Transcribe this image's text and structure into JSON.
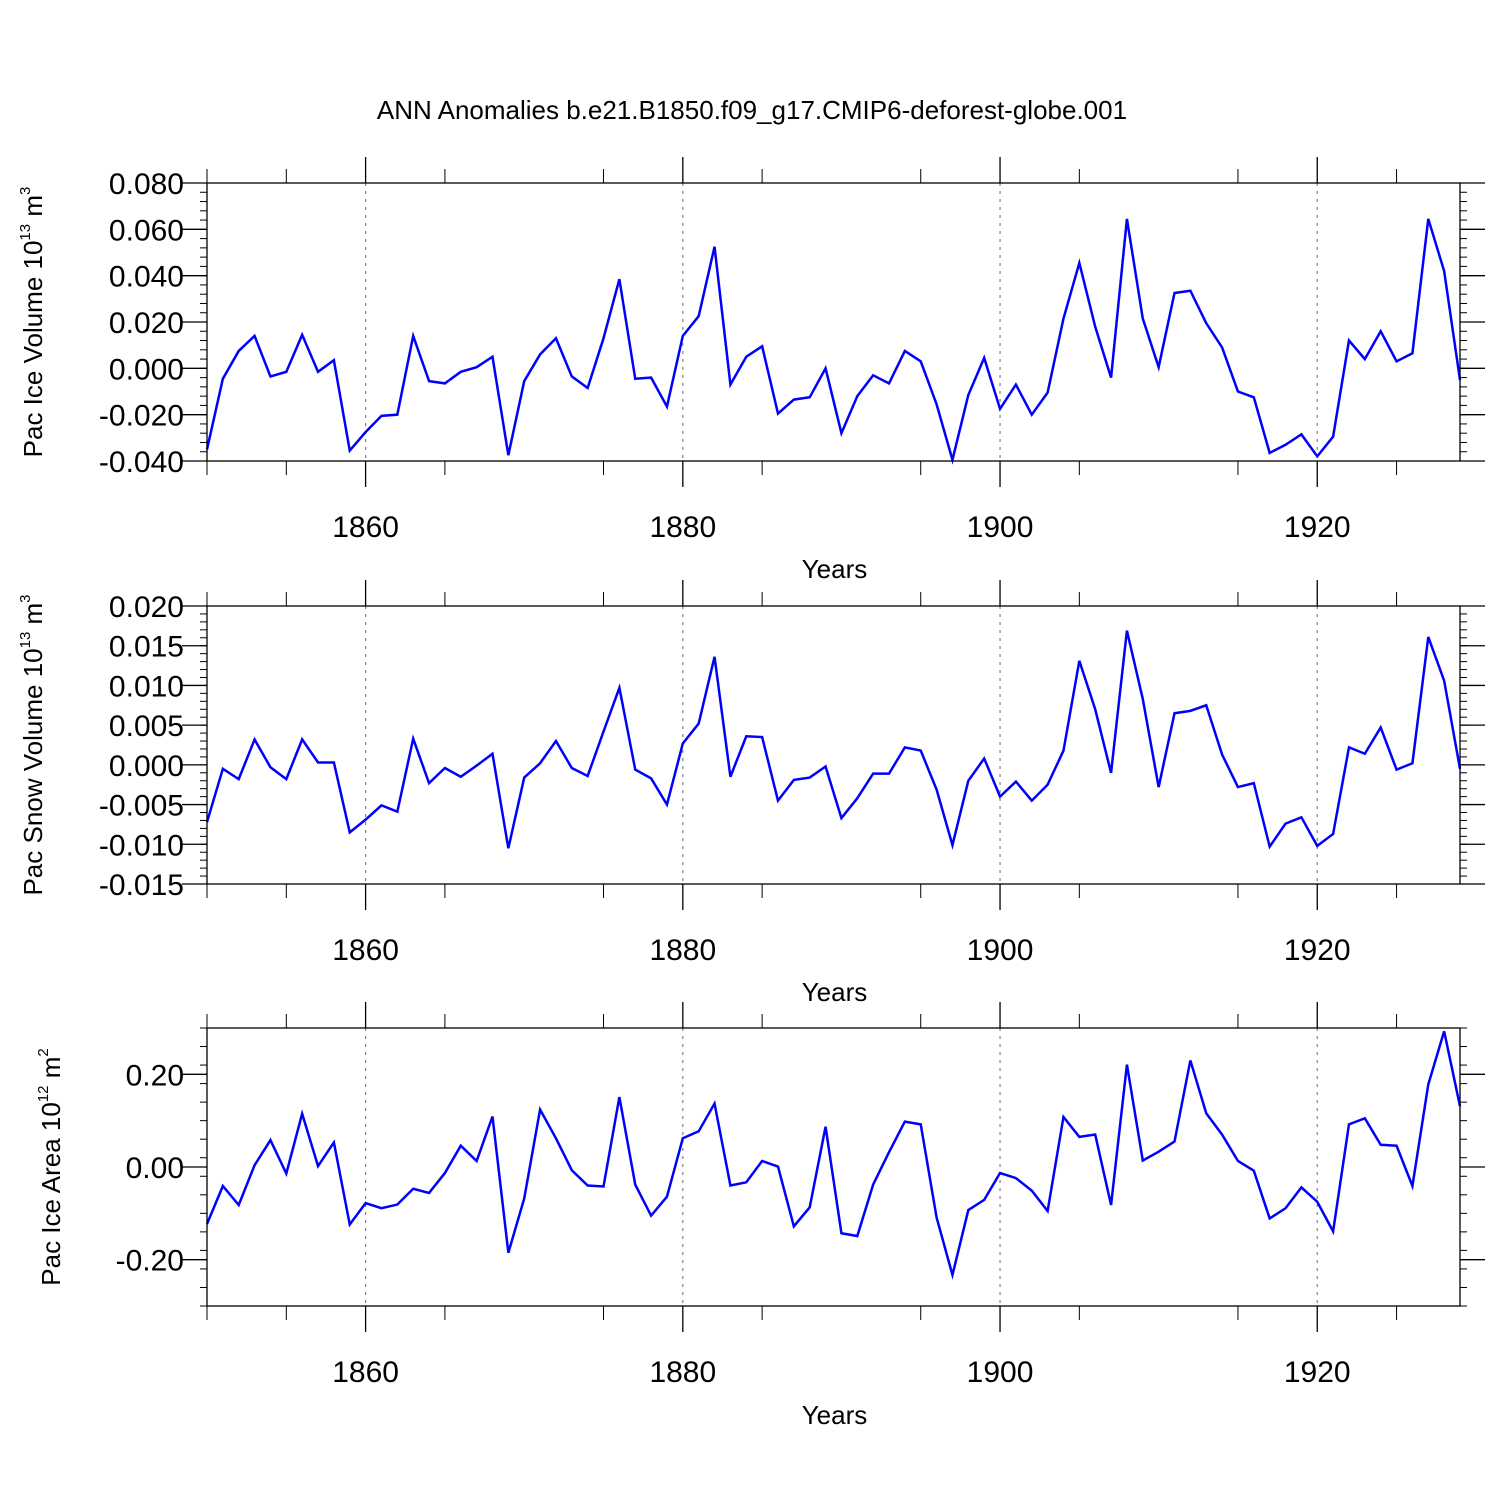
{
  "title": "ANN Anomalies b.e21.B1850.f09_g17.CMIP6-deforest-globe.001",
  "colors": {
    "line": "#0000ff",
    "axis": "#000000",
    "grid": "#808080"
  },
  "chart_data": [
    {
      "type": "line",
      "ylabel": {
        "text": "Pac Ice Volume 10",
        "sup": "13",
        "unit": " m",
        "unit_sup": "3"
      },
      "xlabel": "Years",
      "xlim": [
        1850,
        1929
      ],
      "ylim": [
        -0.04,
        0.08
      ],
      "yticks": [
        -0.04,
        -0.02,
        0.0,
        0.02,
        0.04,
        0.06,
        0.08
      ],
      "ytick_labels": [
        "-0.040",
        "-0.020",
        "0.000",
        "0.020",
        "0.040",
        "0.060",
        "0.080"
      ],
      "xticks": [
        1860,
        1880,
        1900,
        1920
      ],
      "xtick_labels": [
        "1860",
        "1880",
        "1900",
        "1920"
      ],
      "vgrid": [
        1860,
        1880,
        1900,
        1920
      ],
      "x_start": 1850,
      "values": [
        -0.035,
        -0.0045,
        0.0075,
        0.014,
        -0.0035,
        -0.0015,
        0.0145,
        -0.0015,
        0.0035,
        -0.0355,
        -0.0275,
        -0.0205,
        -0.02,
        0.014,
        -0.0055,
        -0.0065,
        -0.0015,
        0.0005,
        0.005,
        -0.0375,
        -0.0055,
        0.006,
        0.013,
        -0.0035,
        -0.0085,
        0.013,
        0.0385,
        -0.0045,
        -0.004,
        -0.0165,
        0.014,
        0.0225,
        0.0525,
        -0.007,
        0.005,
        0.0095,
        -0.0195,
        -0.0135,
        -0.0125,
        0.0,
        -0.028,
        -0.012,
        -0.003,
        -0.0065,
        0.0075,
        0.003,
        -0.0155,
        -0.0395,
        -0.0115,
        0.0045,
        -0.0175,
        -0.007,
        -0.02,
        -0.0105,
        0.0215,
        0.0455,
        0.018,
        -0.004,
        0.0645,
        0.0215,
        0.0005,
        0.0325,
        0.0335,
        0.0195,
        0.009,
        -0.01,
        -0.0125,
        -0.0365,
        -0.033,
        -0.0285,
        -0.038,
        -0.0295,
        0.012,
        0.004,
        0.016,
        0.003,
        0.0065,
        0.0645,
        0.042,
        -0.005
      ]
    },
    {
      "type": "line",
      "ylabel": {
        "text": "Pac Snow Volume 10",
        "sup": "13",
        "unit": " m",
        "unit_sup": "3"
      },
      "xlabel": "Years",
      "xlim": [
        1850,
        1929
      ],
      "ylim": [
        -0.015,
        0.02
      ],
      "yticks": [
        -0.015,
        -0.01,
        -0.005,
        0.0,
        0.005,
        0.01,
        0.015,
        0.02
      ],
      "ytick_labels": [
        "-0.015",
        "-0.010",
        "-0.005",
        "0.000",
        "0.005",
        "0.010",
        "0.015",
        "0.020"
      ],
      "xticks": [
        1860,
        1880,
        1900,
        1920
      ],
      "xtick_labels": [
        "1860",
        "1880",
        "1900",
        "1920"
      ],
      "vgrid": [
        1860,
        1880,
        1900,
        1920
      ],
      "x_start": 1850,
      "values": [
        -0.0072,
        -0.0005,
        -0.0018,
        0.0032,
        -0.0003,
        -0.0018,
        0.0032,
        0.0003,
        0.0003,
        -0.0085,
        -0.0069,
        -0.0051,
        -0.0059,
        0.0033,
        -0.0023,
        -0.0004,
        -0.0015,
        -0.0001,
        0.0014,
        -0.0105,
        -0.0016,
        0.0002,
        0.003,
        -0.0004,
        -0.0014,
        0.0042,
        0.0097,
        -0.0006,
        -0.0017,
        -0.005,
        0.0027,
        0.0052,
        0.0136,
        -0.0015,
        0.0036,
        0.0035,
        -0.0045,
        -0.0019,
        -0.0016,
        -0.0002,
        -0.0067,
        -0.0042,
        -0.0011,
        -0.0011,
        0.0022,
        0.0018,
        -0.0031,
        -0.0101,
        -0.002,
        0.0008,
        -0.004,
        -0.0021,
        -0.0045,
        -0.0025,
        0.0018,
        0.0131,
        0.007,
        -0.001,
        0.0169,
        0.0083,
        -0.0028,
        0.0065,
        0.0068,
        0.0075,
        0.0013,
        -0.0028,
        -0.0023,
        -0.0103,
        -0.0074,
        -0.0066,
        -0.0102,
        -0.0087,
        0.0022,
        0.0014,
        0.0047,
        -0.0006,
        0.0002,
        0.0161,
        0.0106,
        -0.0005
      ]
    },
    {
      "type": "line",
      "ylabel": {
        "text": "Pac Ice Area 10",
        "sup": "12",
        "unit": " m",
        "unit_sup": "2"
      },
      "xlabel": "Years",
      "xlim": [
        1850,
        1929
      ],
      "ylim": [
        -0.3,
        0.3
      ],
      "yticks": [
        -0.2,
        0.0,
        0.2
      ],
      "ytick_labels": [
        "-0.20",
        "0.00",
        "0.20"
      ],
      "xticks": [
        1860,
        1880,
        1900,
        1920
      ],
      "xtick_labels": [
        "1860",
        "1880",
        "1900",
        "1920"
      ],
      "vgrid": [
        1860,
        1880,
        1900,
        1920
      ],
      "x_start": 1850,
      "values": [
        -0.123,
        -0.041,
        -0.082,
        0.004,
        0.058,
        -0.014,
        0.115,
        0.002,
        0.053,
        -0.124,
        -0.078,
        -0.089,
        -0.081,
        -0.047,
        -0.056,
        -0.013,
        0.046,
        0.013,
        0.109,
        -0.185,
        -0.068,
        0.124,
        0.062,
        -0.007,
        -0.04,
        -0.042,
        0.151,
        -0.038,
        -0.105,
        -0.064,
        0.062,
        0.077,
        0.137,
        -0.04,
        -0.033,
        0.013,
        0.001,
        -0.128,
        -0.087,
        0.087,
        -0.143,
        -0.149,
        -0.038,
        0.032,
        0.098,
        0.092,
        -0.109,
        -0.233,
        -0.093,
        -0.071,
        -0.013,
        -0.024,
        -0.051,
        -0.095,
        0.108,
        0.065,
        0.07,
        -0.082,
        0.221,
        0.014,
        0.033,
        0.055,
        0.23,
        0.116,
        0.07,
        0.013,
        -0.008,
        -0.111,
        -0.089,
        -0.044,
        -0.075,
        -0.139,
        0.092,
        0.105,
        0.048,
        0.046,
        -0.041,
        0.178,
        0.293,
        0.131
      ]
    }
  ]
}
